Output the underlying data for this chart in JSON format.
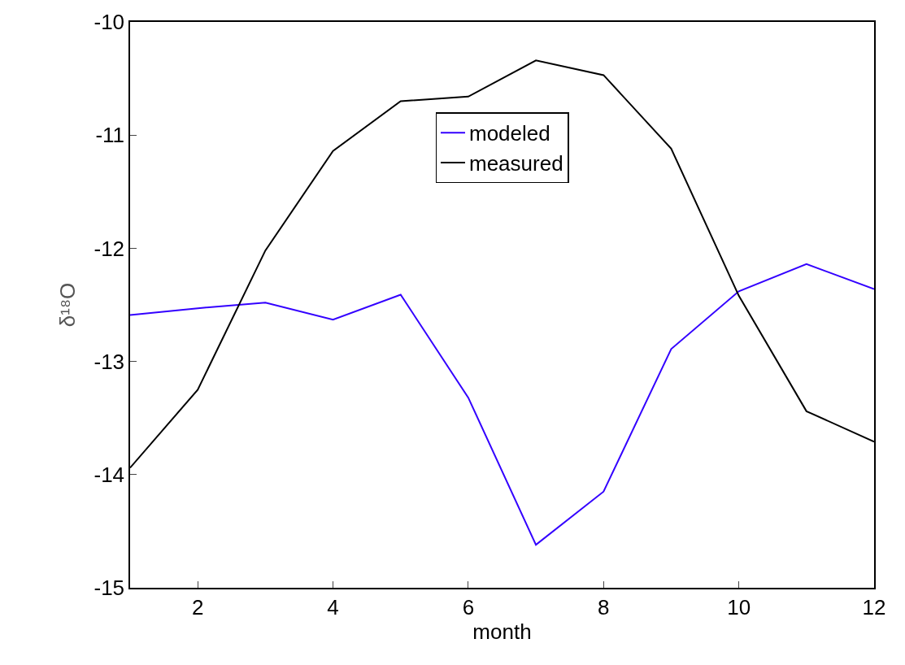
{
  "chart_data": {
    "type": "line",
    "xlabel": "month",
    "ylabel": "δ¹⁸O",
    "x": [
      1,
      2,
      3,
      4,
      5,
      6,
      7,
      8,
      9,
      10,
      11,
      12
    ],
    "series": [
      {
        "name": "modeled",
        "color": "#3300ff",
        "values": [
          -12.59,
          -12.53,
          -12.48,
          -12.63,
          -12.41,
          -13.32,
          -14.62,
          -14.15,
          -12.89,
          -12.38,
          -12.14,
          -12.36
        ]
      },
      {
        "name": "measured",
        "color": "#000000",
        "values": [
          -13.94,
          -13.25,
          -12.02,
          -11.14,
          -10.7,
          -10.66,
          -10.34,
          -10.47,
          -11.12,
          -12.42,
          -13.44,
          -13.71
        ]
      }
    ],
    "xlim": [
      1,
      12
    ],
    "xticks": [
      2,
      4,
      6,
      8,
      10,
      12
    ],
    "ylim": [
      -15,
      -10
    ],
    "yticks": [
      -15,
      -14,
      -13,
      -12,
      -11,
      -10
    ],
    "legend": "top",
    "marker": "none",
    "line_style": "solid"
  }
}
